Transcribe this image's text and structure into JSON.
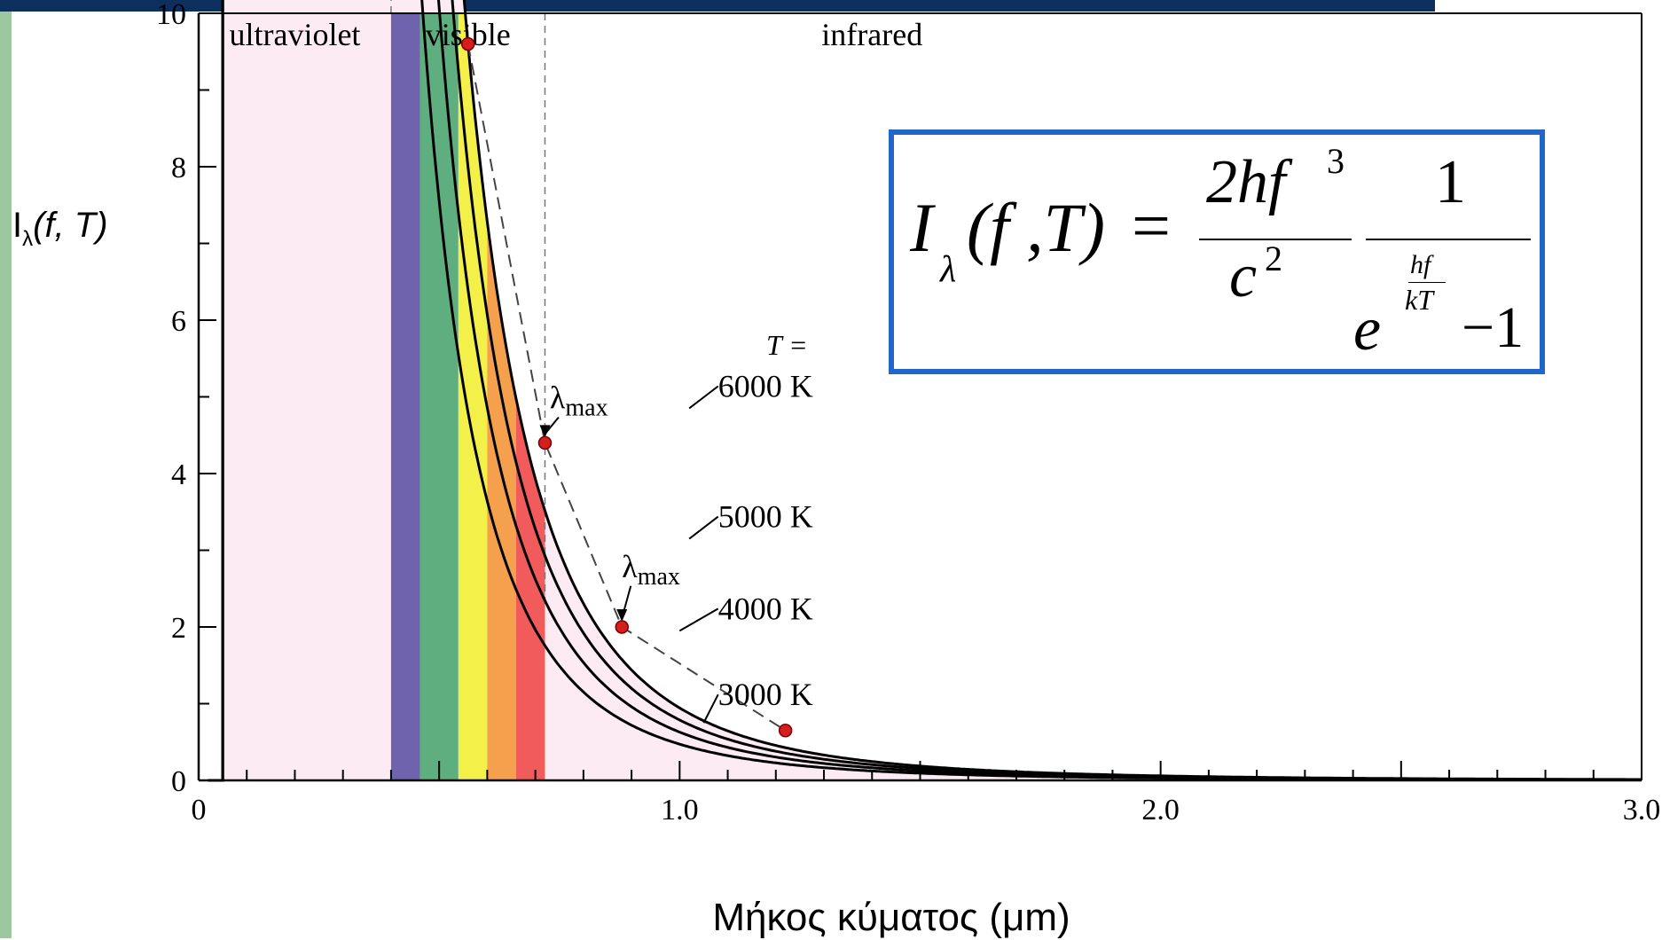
{
  "y_axis_title": {
    "symbol": "I",
    "subscript": "λ",
    "args": "(f, T)"
  },
  "x_axis_title": "Μήκος κύματος (μm)",
  "formula": {
    "lhs_symbol": "I",
    "lhs_subscript": "λ",
    "lhs_args": "(f ,T)",
    "equals": "=",
    "numerator_1": "2hf",
    "numerator_1_exp": "3",
    "denominator_1": "c",
    "denominator_1_exp": "2",
    "numerator_2": "1",
    "exp_numerator": "hf",
    "exp_denominator": "kT",
    "exp_base": "e",
    "minus_one": "−1"
  },
  "chart_data": {
    "type": "line",
    "x_ticks": [
      {
        "value": 0,
        "label": "0"
      },
      {
        "value": 1.0,
        "label": "1.0"
      },
      {
        "value": 2.0,
        "label": "2.0"
      },
      {
        "value": 3.0,
        "label": "3.0"
      }
    ],
    "y_ticks": [
      {
        "value": 0,
        "label": "0"
      },
      {
        "value": 2,
        "label": "2"
      },
      {
        "value": 4,
        "label": "4"
      },
      {
        "value": 6,
        "label": "6"
      },
      {
        "value": 8,
        "label": "8"
      },
      {
        "value": 10,
        "label": "10"
      }
    ],
    "xlim": [
      0,
      3.0
    ],
    "ylim": [
      0,
      10
    ],
    "regions": [
      {
        "label": "ultraviolet",
        "x_from": 0,
        "x_to": 0.4
      },
      {
        "label": "visible",
        "x_from": 0.4,
        "x_to": 0.72
      },
      {
        "label": "infrared",
        "x_from": 0.72,
        "x_to": 3.0
      }
    ],
    "spectrum_bands": [
      {
        "from": 0.4,
        "to": 0.46,
        "color": "#6f63ad"
      },
      {
        "from": 0.46,
        "to": 0.54,
        "color": "#5fae7f"
      },
      {
        "from": 0.54,
        "to": 0.6,
        "color": "#f4f04a"
      },
      {
        "from": 0.6,
        "to": 0.66,
        "color": "#f5a04d"
      },
      {
        "from": 0.66,
        "to": 0.72,
        "color": "#f25b5b"
      }
    ],
    "temperature_header": "T =",
    "series": [
      {
        "name": "6000 K",
        "temperature": 6000,
        "peak_x": 0.56,
        "peak_y": 9.6
      },
      {
        "name": "5000 K",
        "temperature": 5000,
        "peak_x": 0.72,
        "peak_y": 4.4
      },
      {
        "name": "4000 K",
        "temperature": 4000,
        "peak_x": 0.88,
        "peak_y": 2.0
      },
      {
        "name": "3000 K",
        "temperature": 3000,
        "peak_x": 1.22,
        "peak_y": 0.65
      }
    ],
    "peak_annotation": "λ",
    "peak_annotation_sub": "max",
    "colors": {
      "fill": "#fcebf3",
      "curve": "#000000",
      "peak_marker": "#d41f1f",
      "formula_border": "#1f66c8"
    }
  }
}
